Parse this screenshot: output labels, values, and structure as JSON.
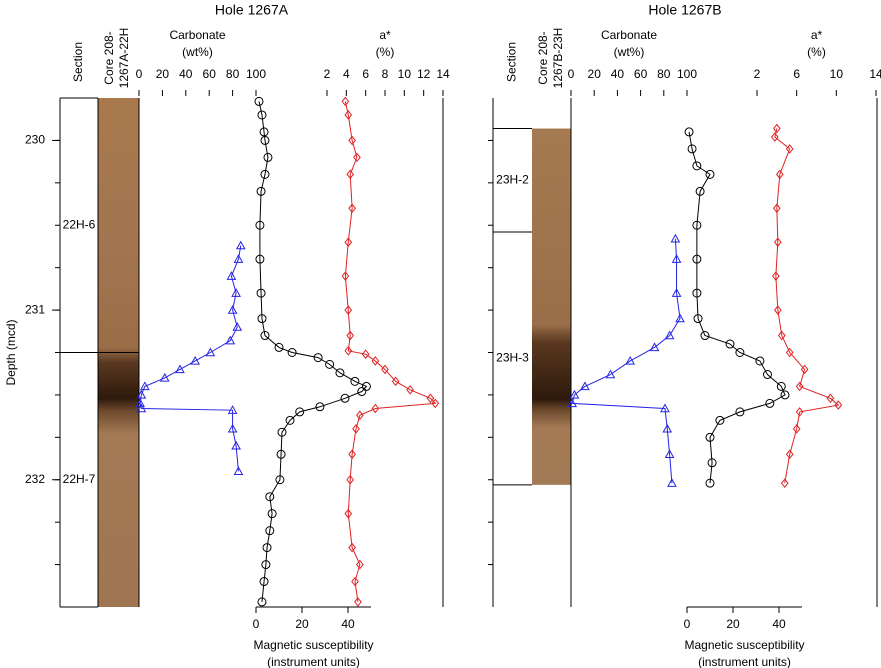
{
  "chart_data": [
    {
      "type": "log_panel",
      "title": "Hole 1267A",
      "ylabel": "Depth (mcd)",
      "ylim": [
        229.75,
        232.75
      ],
      "yticks": [
        230,
        231,
        232
      ],
      "minor_yticks": [
        230,
        230.25,
        230.5,
        230.75,
        231,
        231.25,
        231.5,
        231.75,
        232,
        232.25,
        232.5
      ],
      "section_header": "Section",
      "core_label": [
        "Core 208-",
        "1267A-22H"
      ],
      "core_interval": [
        229.75,
        232.75
      ],
      "sections": [
        {
          "label": "22H-6",
          "top": 229.75,
          "bottom": 231.25
        },
        {
          "label": "22H-7",
          "top": 231.25,
          "bottom": 232.75
        }
      ],
      "series": [
        {
          "axis_label": [
            "Carbonate",
            "(wt%)"
          ],
          "axis_position": "top",
          "color": "#2323e6",
          "marker": "triangle",
          "xlim": [
            0,
            100
          ],
          "xticks": [
            0,
            20,
            40,
            60,
            80,
            100
          ],
          "depth": [
            230.62,
            230.7,
            230.8,
            230.9,
            231.0,
            231.1,
            231.18,
            231.25,
            231.3,
            231.35,
            231.4,
            231.45,
            231.5,
            231.55,
            231.58,
            231.59,
            231.7,
            231.8,
            231.95
          ],
          "values": [
            87,
            85,
            79,
            83,
            80,
            84,
            78,
            61,
            48,
            35,
            22,
            5,
            2,
            1,
            2,
            80,
            80,
            83,
            85
          ]
        },
        {
          "axis_label": [
            "a*",
            "(%)"
          ],
          "axis_position": "top",
          "color": "#e02020",
          "marker": "diamond",
          "xlim": [
            2,
            14
          ],
          "xticks": [
            2,
            4,
            6,
            8,
            10,
            12,
            14
          ],
          "depth": [
            229.77,
            229.85,
            230.0,
            230.1,
            230.2,
            230.4,
            230.6,
            230.8,
            231.0,
            231.15,
            231.24,
            231.26,
            231.3,
            231.35,
            231.42,
            231.47,
            231.52,
            231.55,
            231.58,
            231.62,
            231.7,
            231.85,
            232.0,
            232.2,
            232.4,
            232.5,
            232.6,
            232.72
          ],
          "values": [
            3.9,
            4.2,
            4.6,
            5.1,
            4.4,
            4.6,
            4.2,
            3.9,
            4.2,
            4.4,
            4.2,
            6,
            7,
            8,
            9.1,
            10.6,
            12.7,
            13.2,
            7,
            5.4,
            5,
            4.6,
            4.4,
            4.2,
            4.6,
            5.4,
            4.9,
            5.2
          ]
        },
        {
          "axis_label": [
            "Magnetic susceptibility",
            "(instrument units)"
          ],
          "axis_position": "bottom",
          "color": "#000000",
          "marker": "circle",
          "xlim": [
            0,
            50
          ],
          "xticks": [
            0,
            20,
            40
          ],
          "depth": [
            229.77,
            229.85,
            229.95,
            230.0,
            230.1,
            230.2,
            230.3,
            230.5,
            230.7,
            230.9,
            231.05,
            231.15,
            231.22,
            231.25,
            231.28,
            231.32,
            231.37,
            231.42,
            231.45,
            231.48,
            231.52,
            231.57,
            231.6,
            231.65,
            231.72,
            231.85,
            232.0,
            232.1,
            232.2,
            232.3,
            232.4,
            232.5,
            232.6,
            232.72
          ],
          "values": [
            1.3,
            2.6,
            3.5,
            3.9,
            5.2,
            3.9,
            2.2,
            1.7,
            1.7,
            2.2,
            2.6,
            3.9,
            10,
            15.7,
            27,
            32,
            36.5,
            43,
            48,
            46,
            38.7,
            27.8,
            19,
            14.8,
            11.3,
            10.9,
            10.4,
            6,
            7,
            6,
            4.8,
            4.3,
            3.5,
            2.6
          ]
        }
      ]
    },
    {
      "type": "log_panel",
      "title": "Hole 1267B",
      "ylim": [
        229.75,
        232.75
      ],
      "minor_yticks": [
        230,
        230.25,
        230.5,
        230.75,
        231,
        231.25,
        231.5,
        231.75,
        232,
        232.25,
        232.5
      ],
      "section_header": "Section",
      "core_label": [
        "Core 208-",
        "1267B-23H"
      ],
      "core_interval": [
        229.93,
        232.03
      ],
      "sections": [
        {
          "label": "23H-2",
          "top": 229.93,
          "bottom": 230.54
        },
        {
          "label": "23H-3",
          "top": 230.54,
          "bottom": 232.03
        }
      ],
      "series": [
        {
          "axis_label": [
            "Carbonate",
            "(wt%)"
          ],
          "axis_position": "top",
          "color": "#2323e6",
          "marker": "triangle",
          "xlim": [
            0,
            100
          ],
          "xticks": [
            0,
            20,
            40,
            60,
            80,
            100
          ],
          "depth": [
            230.58,
            230.7,
            230.9,
            231.05,
            231.15,
            231.22,
            231.3,
            231.38,
            231.45,
            231.5,
            231.55,
            231.58,
            231.7,
            231.85,
            232.02
          ],
          "values": [
            90,
            91,
            91,
            94,
            85,
            72,
            51,
            34,
            12,
            3,
            1,
            81,
            83,
            85,
            87
          ]
        },
        {
          "axis_label": [
            "a*",
            "(%)"
          ],
          "axis_position": "top",
          "color": "#e02020",
          "marker": "diamond",
          "xlim": [
            2,
            14
          ],
          "xticks": [
            2,
            6,
            10,
            14
          ],
          "depth": [
            229.93,
            229.98,
            230.05,
            230.2,
            230.4,
            230.6,
            230.8,
            231.0,
            231.15,
            231.25,
            231.35,
            231.45,
            231.52,
            231.56,
            231.6,
            231.7,
            231.85,
            232.02
          ],
          "values": [
            4,
            3.8,
            5.3,
            4.3,
            4,
            4.1,
            3.9,
            4.1,
            4.5,
            5.3,
            6.8,
            6.3,
            9.4,
            10.2,
            6.3,
            6,
            5.3,
            4.8
          ]
        },
        {
          "axis_label": [
            "Magnetic susceptibility",
            "(instrument units)"
          ],
          "axis_position": "bottom",
          "color": "#000000",
          "marker": "circle",
          "xlim": [
            0,
            50
          ],
          "xticks": [
            0,
            20,
            40
          ],
          "depth": [
            229.95,
            230.05,
            230.15,
            230.2,
            230.3,
            230.5,
            230.7,
            230.9,
            231.05,
            231.15,
            231.2,
            231.25,
            231.3,
            231.38,
            231.45,
            231.5,
            231.55,
            231.6,
            231.65,
            231.75,
            231.9,
            232.02
          ],
          "values": [
            0.9,
            2.2,
            4.3,
            10,
            5.7,
            4.3,
            4.3,
            4.3,
            4.8,
            7.8,
            18.7,
            23,
            31.7,
            35,
            41,
            42.6,
            36,
            23,
            14.3,
            10,
            10.9,
            10
          ]
        }
      ]
    }
  ]
}
